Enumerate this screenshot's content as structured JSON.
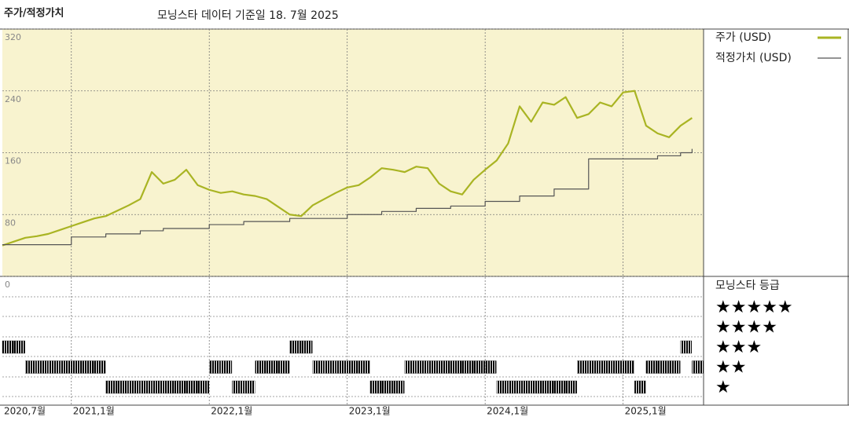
{
  "chart_data": {
    "type": "line",
    "title": "주가/적정가치",
    "subtitle": "모닝스타 데이터 기준일 18. 7월 2025",
    "x": [
      "2020-07",
      "2020-08",
      "2020-09",
      "2020-10",
      "2020-11",
      "2020-12",
      "2021-01",
      "2021-02",
      "2021-03",
      "2021-04",
      "2021-05",
      "2021-06",
      "2021-07",
      "2021-08",
      "2021-09",
      "2021-10",
      "2021-11",
      "2021-12",
      "2022-01",
      "2022-02",
      "2022-03",
      "2022-04",
      "2022-05",
      "2022-06",
      "2022-07",
      "2022-08",
      "2022-09",
      "2022-10",
      "2022-11",
      "2022-12",
      "2023-01",
      "2023-02",
      "2023-03",
      "2023-04",
      "2023-05",
      "2023-06",
      "2023-07",
      "2023-08",
      "2023-09",
      "2023-10",
      "2023-11",
      "2023-12",
      "2024-01",
      "2024-02",
      "2024-03",
      "2024-04",
      "2024-05",
      "2024-06",
      "2024-07",
      "2024-08",
      "2024-09",
      "2024-10",
      "2024-11",
      "2024-12",
      "2025-01",
      "2025-02",
      "2025-03",
      "2025-04",
      "2025-05",
      "2025-06",
      "2025-07"
    ],
    "series": [
      {
        "name": "주가 (USD)",
        "color": "#a9b423",
        "values": [
          40,
          45,
          50,
          52,
          55,
          60,
          65,
          70,
          75,
          78,
          85,
          92,
          100,
          135,
          120,
          125,
          138,
          118,
          112,
          108,
          110,
          106,
          104,
          100,
          90,
          80,
          78,
          92,
          100,
          108,
          115,
          118,
          128,
          140,
          138,
          135,
          142,
          140,
          120,
          110,
          106,
          125,
          138,
          150,
          172,
          220,
          200,
          225,
          222,
          232,
          205,
          210,
          225,
          220,
          238,
          240,
          195,
          185,
          180,
          195,
          205
        ]
      },
      {
        "name": "적정가치 (USD)",
        "color": "#555555",
        "step": true,
        "values": [
          41,
          41,
          41,
          41,
          41,
          41,
          51,
          51,
          51,
          55,
          55,
          55,
          59,
          59,
          62,
          62,
          62,
          62,
          67,
          67,
          67,
          71,
          71,
          71,
          71,
          75,
          75,
          75,
          75,
          75,
          80,
          80,
          80,
          84,
          84,
          84,
          88,
          88,
          88,
          91,
          91,
          91,
          97,
          97,
          97,
          104,
          104,
          104,
          113,
          113,
          113,
          152,
          152,
          152,
          152,
          152,
          152,
          156,
          156,
          160,
          165
        ]
      }
    ],
    "ratings": {
      "name": "모닝스타 등급",
      "color": "#000000",
      "labels": [
        "★",
        "★★",
        "★★★",
        "★★★★",
        "★★★★★"
      ],
      "values": [
        3,
        3,
        2,
        2,
        2,
        2,
        2,
        2,
        2,
        1,
        1,
        1,
        1,
        1,
        1,
        1,
        1,
        1,
        2,
        2,
        1,
        1,
        2,
        2,
        2,
        3,
        3,
        2,
        2,
        2,
        2,
        2,
        1,
        1,
        1,
        2,
        2,
        2,
        2,
        2,
        2,
        2,
        2,
        1,
        1,
        1,
        1,
        1,
        1,
        1,
        2,
        2,
        2,
        2,
        2,
        1,
        2,
        2,
        2,
        3,
        2
      ]
    },
    "xlim": [
      "2020-07",
      "2025-08"
    ],
    "xticks": [
      {
        "value": "2020-07",
        "label": "2020,7월"
      },
      {
        "value": "2021-01",
        "label": "2021,1월"
      },
      {
        "value": "2022-01",
        "label": "2022,1월"
      },
      {
        "value": "2023-01",
        "label": "2023,1월"
      },
      {
        "value": "2024-01",
        "label": "2024,1월"
      },
      {
        "value": "2025-01",
        "label": "2025,1월"
      }
    ],
    "ylim": [
      0,
      320
    ],
    "yticks": [
      0,
      80,
      160,
      240,
      320
    ],
    "grid": true,
    "background": "#f8f3cf"
  }
}
